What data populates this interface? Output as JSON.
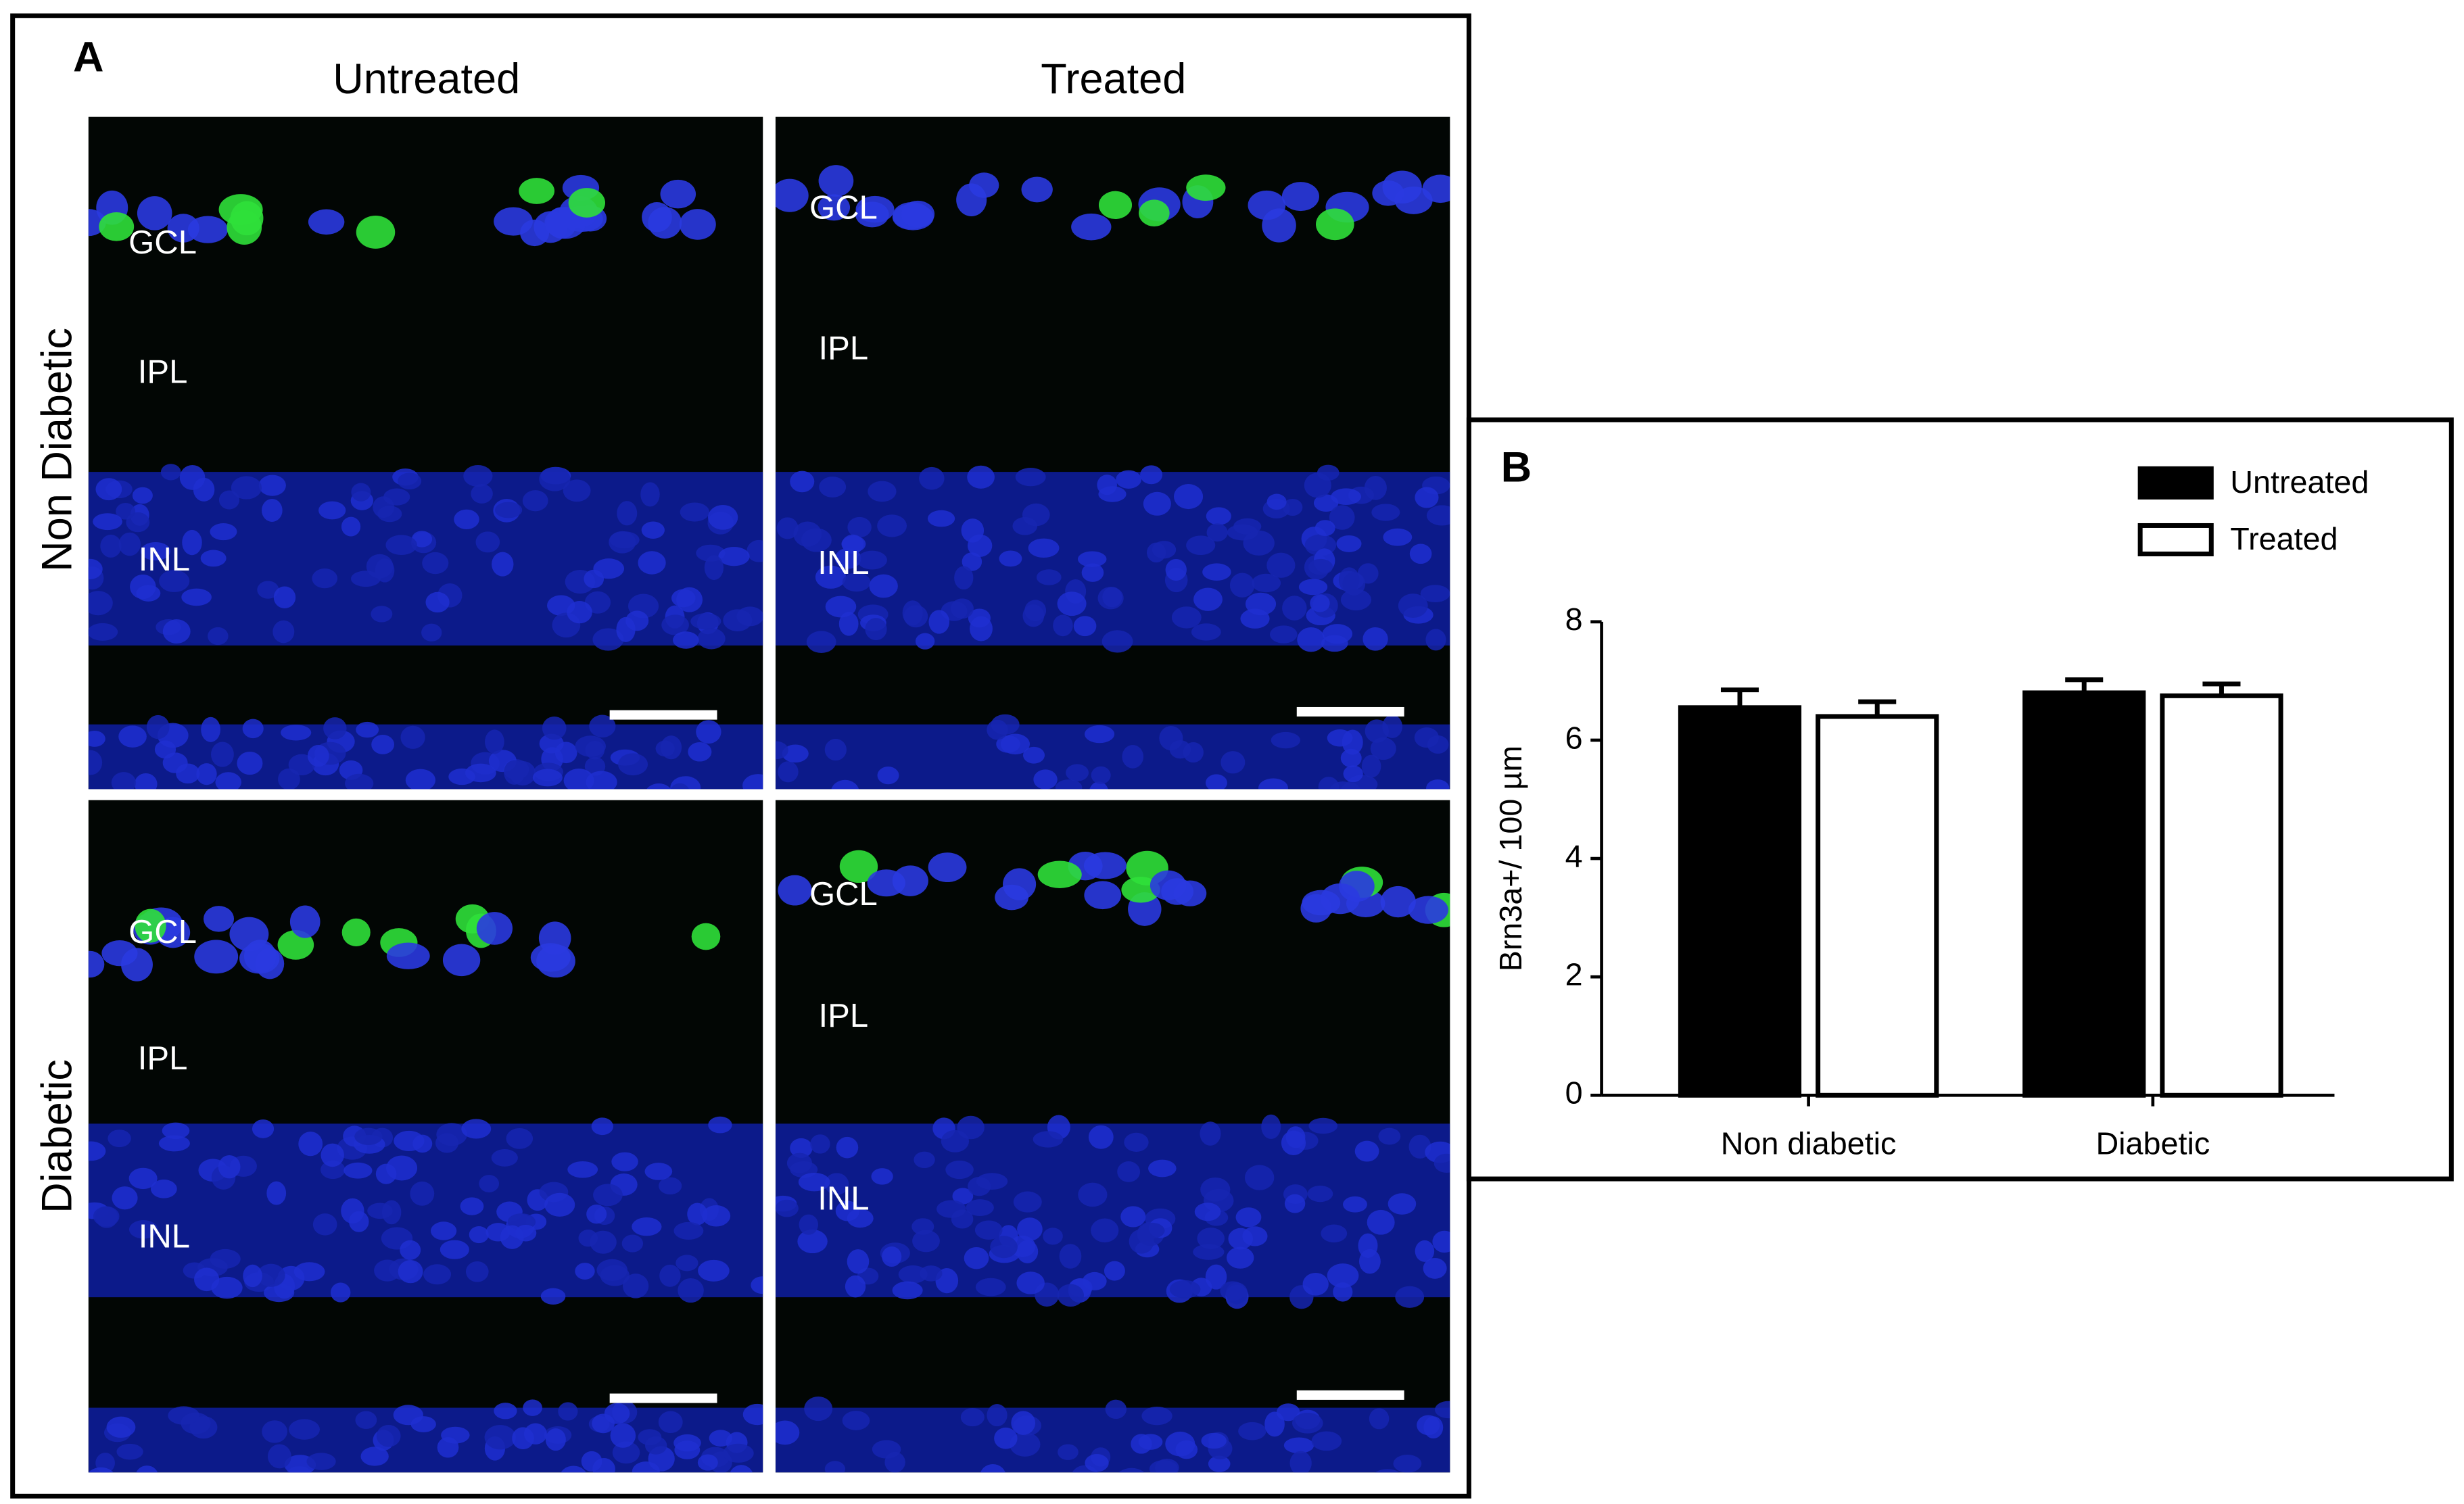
{
  "panel_a": {
    "label": "A",
    "columns": [
      "Untreated",
      "Treated"
    ],
    "rows": [
      "Non Diabetic",
      "Diabetic"
    ],
    "images": [
      {
        "layers": [
          "GCL",
          "IPL",
          "INL"
        ]
      },
      {
        "layers": [
          "GCL",
          "IPL",
          "INL"
        ]
      },
      {
        "layers": [
          "GCL",
          "IPL",
          "INL"
        ]
      },
      {
        "layers": [
          "GCL",
          "IPL",
          "INL"
        ]
      }
    ]
  },
  "chart_data": {
    "type": "bar",
    "panel_label": "B",
    "y_label": "Brn3a+/ 100 µm",
    "categories": [
      "Non diabetic",
      "Diabetic"
    ],
    "series": [
      {
        "name": "Untreated",
        "color": "#000000",
        "values": [
          6.55,
          6.8
        ],
        "errors": [
          0.3,
          0.22
        ]
      },
      {
        "name": "Treated",
        "color": "#ffffff",
        "values": [
          6.4,
          6.75
        ],
        "errors": [
          0.25,
          0.2
        ]
      }
    ],
    "ylim": [
      0,
      8
    ],
    "yticks": [
      0,
      2,
      4,
      6,
      8
    ],
    "grid": false,
    "legend": "top-right"
  }
}
